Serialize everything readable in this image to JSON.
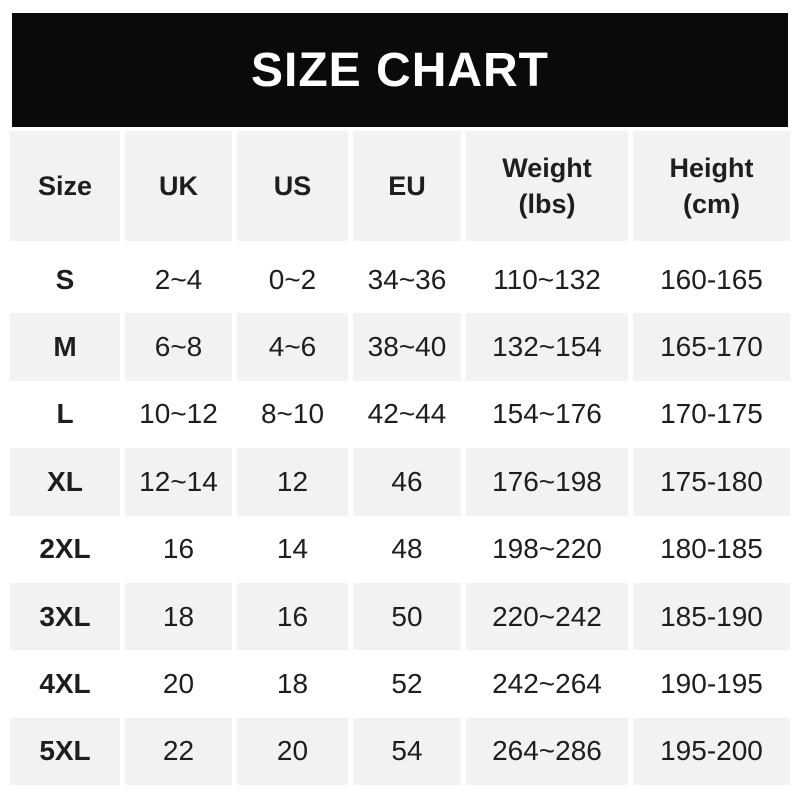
{
  "banner": {
    "title": "SIZE CHART"
  },
  "colors": {
    "banner_bg": "#0a0a0a",
    "banner_text": "#ffffff",
    "row_stripe": "#f2f2f2",
    "text": "#1e1e1e",
    "background": "#ffffff"
  },
  "chart_data": {
    "type": "table",
    "title": "SIZE CHART",
    "columns": [
      "Size",
      "UK",
      "US",
      "EU",
      "Weight (lbs)",
      "Height (cm)"
    ],
    "headers": [
      {
        "line1": "Size",
        "line2": ""
      },
      {
        "line1": "UK",
        "line2": ""
      },
      {
        "line1": "US",
        "line2": ""
      },
      {
        "line1": "EU",
        "line2": ""
      },
      {
        "line1": "Weight",
        "line2": "(lbs)"
      },
      {
        "line1": "Height",
        "line2": "(cm)"
      }
    ],
    "rows": [
      {
        "size": "S",
        "uk": "2~4",
        "us": "0~2",
        "eu": "34~36",
        "weight_lbs": "110~132",
        "height_cm": "160-165"
      },
      {
        "size": "M",
        "uk": "6~8",
        "us": "4~6",
        "eu": "38~40",
        "weight_lbs": "132~154",
        "height_cm": "165-170"
      },
      {
        "size": "L",
        "uk": "10~12",
        "us": "8~10",
        "eu": "42~44",
        "weight_lbs": "154~176",
        "height_cm": "170-175"
      },
      {
        "size": "XL",
        "uk": "12~14",
        "us": "12",
        "eu": "46",
        "weight_lbs": "176~198",
        "height_cm": "175-180"
      },
      {
        "size": "2XL",
        "uk": "16",
        "us": "14",
        "eu": "48",
        "weight_lbs": "198~220",
        "height_cm": "180-185"
      },
      {
        "size": "3XL",
        "uk": "18",
        "us": "16",
        "eu": "50",
        "weight_lbs": "220~242",
        "height_cm": "185-190"
      },
      {
        "size": "4XL",
        "uk": "20",
        "us": "18",
        "eu": "52",
        "weight_lbs": "242~264",
        "height_cm": "190-195"
      },
      {
        "size": "5XL",
        "uk": "22",
        "us": "20",
        "eu": "54",
        "weight_lbs": "264~286",
        "height_cm": "195-200"
      }
    ]
  }
}
